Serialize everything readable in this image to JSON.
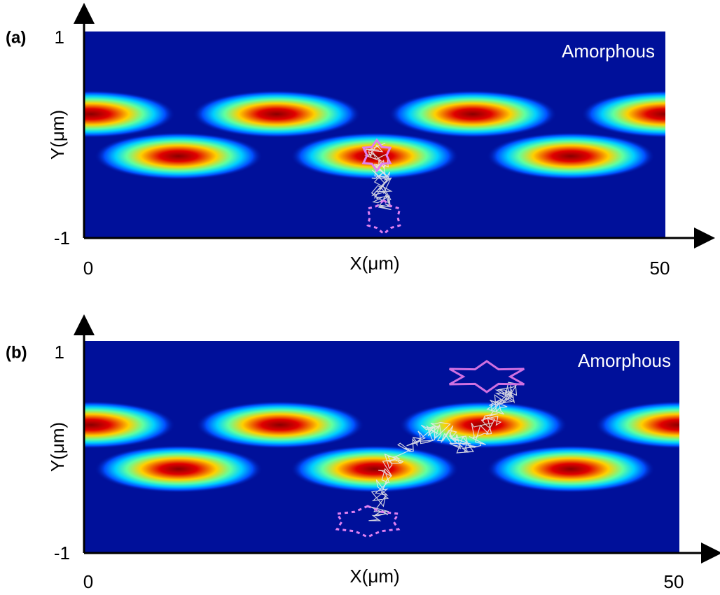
{
  "panels": [
    {
      "label": "(a)",
      "annotation": "Amorphous",
      "x_label": "X(μm)",
      "y_label": "Y(μm)",
      "x_ticks": [
        0,
        50
      ],
      "y_ticks": [
        1,
        -1
      ]
    },
    {
      "label": "(b)",
      "annotation": "Amorphous",
      "x_label": "X(μm)",
      "y_label": "Y(μm)",
      "x_ticks": [
        0,
        50
      ],
      "y_ticks": [
        1,
        -1
      ]
    }
  ]
}
